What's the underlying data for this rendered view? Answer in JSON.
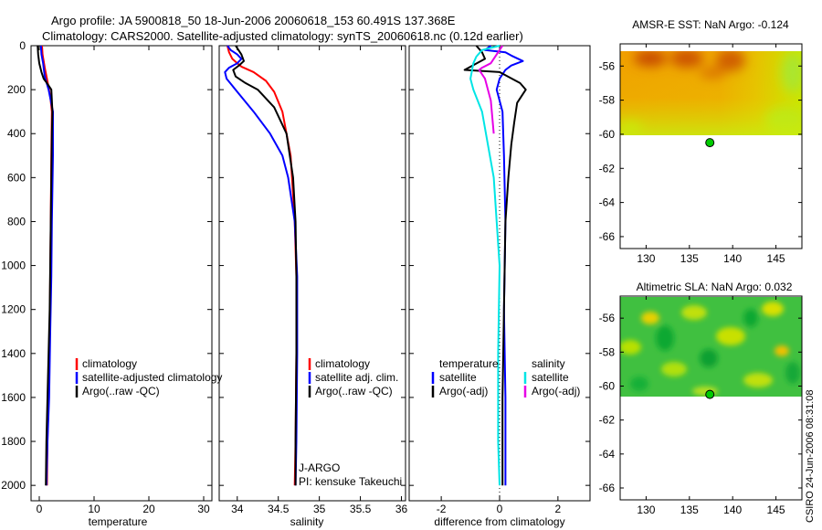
{
  "header": {
    "line1": "Argo profile: JA 5900818_50 18-Jun-2006 20060618_153 60.491S 137.368E",
    "line2": "Climatology: CARS2000. Satellite-adjusted climatology: synTS_20060618.nc (0.12d earlier)"
  },
  "colors": {
    "climatology": "#ff0000",
    "satellite": "#0000ff",
    "argo": "#000000",
    "salinity_satellite": "#00e5e5",
    "salinity_argo": "#e600e6",
    "marker": "#00cc00"
  },
  "chart_data": [
    {
      "type": "line",
      "name": "temperature-profile",
      "xlabel": "temperature",
      "xlim": [
        -1.5,
        31.5
      ],
      "ylim": [
        0,
        2070
      ],
      "xticks": [
        0,
        10,
        20,
        30
      ],
      "yticks": [
        0,
        200,
        400,
        600,
        800,
        1000,
        1200,
        1400,
        1600,
        1800,
        2000
      ],
      "legend": [
        "climatology",
        "satellite-adjusted climatology",
        "Argo(..raw -QC)"
      ],
      "series": [
        {
          "name": "climatology",
          "color_key": "climatology",
          "points": [
            [
              0.5,
              0
            ],
            [
              0.6,
              40
            ],
            [
              1.0,
              100
            ],
            [
              1.4,
              150
            ],
            [
              2.0,
              230
            ],
            [
              2.3,
              300
            ],
            [
              2.2,
              500
            ],
            [
              2.1,
              800
            ],
            [
              2.0,
              1050
            ],
            [
              1.9,
              1300
            ],
            [
              1.7,
              1600
            ],
            [
              1.5,
              1800
            ],
            [
              1.4,
              2000
            ]
          ]
        },
        {
          "name": "satellite-adjusted climatology",
          "color_key": "satellite",
          "points": [
            [
              0.3,
              0
            ],
            [
              0.4,
              40
            ],
            [
              0.7,
              80
            ],
            [
              1.0,
              140
            ],
            [
              1.7,
              200
            ],
            [
              2.5,
              300
            ],
            [
              2.5,
              500
            ],
            [
              2.3,
              800
            ],
            [
              2.2,
              1050
            ],
            [
              2.0,
              1300
            ],
            [
              1.8,
              1600
            ],
            [
              1.5,
              1800
            ],
            [
              1.3,
              2000
            ]
          ]
        },
        {
          "name": "Argo(..raw -QC)",
          "color_key": "argo",
          "points": [
            [
              -0.3,
              0
            ],
            [
              -0.2,
              40
            ],
            [
              0.0,
              80
            ],
            [
              0.4,
              120
            ],
            [
              0.8,
              150
            ],
            [
              1.4,
              170
            ],
            [
              2.2,
              200
            ],
            [
              2.4,
              300
            ],
            [
              2.3,
              400
            ],
            [
              2.2,
              600
            ],
            [
              2.1,
              800
            ],
            [
              2.0,
              1000
            ],
            [
              1.9,
              1200
            ],
            [
              1.7,
              1400
            ],
            [
              1.5,
              1600
            ],
            [
              1.3,
              1800
            ],
            [
              1.2,
              2000
            ]
          ]
        }
      ]
    },
    {
      "type": "line",
      "name": "salinity-profile",
      "xlabel": "salinity",
      "xlim": [
        33.78,
        36.05
      ],
      "ylim": [
        0,
        2070
      ],
      "xticks": [
        34,
        34.5,
        35,
        35.5,
        36
      ],
      "xticklabels": [
        "34",
        "34.5",
        "35",
        "35.5",
        "36"
      ],
      "legend": [
        "climatology",
        "satellite adj. clim.",
        "Argo(..raw -QC)"
      ],
      "annotation": [
        "J-ARGO",
        "PI: kensuke Takeuchi"
      ],
      "series": [
        {
          "name": "climatology",
          "color_key": "climatology",
          "points": [
            [
              33.88,
              0
            ],
            [
              33.9,
              30
            ],
            [
              33.94,
              60
            ],
            [
              34.0,
              80
            ],
            [
              34.05,
              95
            ],
            [
              34.2,
              120
            ],
            [
              34.35,
              160
            ],
            [
              34.45,
              210
            ],
            [
              34.55,
              300
            ],
            [
              34.65,
              500
            ],
            [
              34.7,
              800
            ],
            [
              34.72,
              1050
            ],
            [
              34.72,
              1400
            ],
            [
              34.71,
              1800
            ],
            [
              34.7,
              2000
            ]
          ]
        },
        {
          "name": "satellite adj. clim.",
          "color_key": "satellite",
          "points": [
            [
              33.88,
              0
            ],
            [
              33.92,
              20
            ],
            [
              34.0,
              40
            ],
            [
              34.05,
              60
            ],
            [
              34.0,
              80
            ],
            [
              33.9,
              100
            ],
            [
              33.85,
              120
            ],
            [
              33.87,
              150
            ],
            [
              34.0,
              210
            ],
            [
              34.2,
              300
            ],
            [
              34.4,
              400
            ],
            [
              34.55,
              500
            ],
            [
              34.62,
              600
            ],
            [
              34.7,
              800
            ],
            [
              34.73,
              1050
            ],
            [
              34.73,
              1400
            ],
            [
              34.72,
              1800
            ],
            [
              34.71,
              2000
            ]
          ]
        },
        {
          "name": "Argo(..raw -QC)",
          "color_key": "argo",
          "points": [
            [
              33.98,
              0
            ],
            [
              34.05,
              40
            ],
            [
              34.08,
              70
            ],
            [
              34.02,
              90
            ],
            [
              33.95,
              110
            ],
            [
              33.98,
              140
            ],
            [
              34.1,
              170
            ],
            [
              34.25,
              200
            ],
            [
              34.45,
              280
            ],
            [
              34.6,
              400
            ],
            [
              34.68,
              600
            ],
            [
              34.71,
              800
            ],
            [
              34.72,
              1050
            ],
            [
              34.72,
              1400
            ],
            [
              34.71,
              1800
            ],
            [
              34.71,
              2000
            ]
          ]
        }
      ]
    },
    {
      "type": "line",
      "name": "difference-profile",
      "xlabel": "difference from climatology",
      "xlim": [
        -3.1,
        3.1
      ],
      "ylim": [
        0,
        2070
      ],
      "xticks": [
        -2,
        0,
        2
      ],
      "legend": {
        "temperature": [
          "satellite",
          "Argo(-adj)"
        ],
        "salinity": [
          "satellite",
          "Argo(-adj)"
        ]
      },
      "legend_titles": [
        "temperature",
        "salinity"
      ],
      "series": [
        {
          "name": "temperature satellite",
          "color_key": "satellite",
          "points": [
            [
              -0.3,
              0
            ],
            [
              -0.5,
              20
            ],
            [
              0.2,
              30
            ],
            [
              0.4,
              45
            ],
            [
              0.8,
              70
            ],
            [
              0.4,
              90
            ],
            [
              0.2,
              110
            ],
            [
              0.0,
              150
            ],
            [
              -0.1,
              200
            ],
            [
              0.1,
              300
            ],
            [
              0.15,
              500
            ],
            [
              0.2,
              800
            ],
            [
              0.15,
              1200
            ],
            [
              0.2,
              1600
            ],
            [
              0.2,
              2000
            ]
          ]
        },
        {
          "name": "temperature Argo(-adj)",
          "color_key": "argo",
          "points": [
            [
              -0.8,
              0
            ],
            [
              -0.6,
              30
            ],
            [
              -0.5,
              60
            ],
            [
              -1.2,
              110
            ],
            [
              0.0,
              120
            ],
            [
              0.7,
              170
            ],
            [
              0.9,
              200
            ],
            [
              0.6,
              260
            ],
            [
              0.5,
              350
            ],
            [
              0.4,
              450
            ],
            [
              0.3,
              600
            ],
            [
              0.2,
              800
            ],
            [
              0.15,
              1200
            ],
            [
              0.1,
              1600
            ],
            [
              0.1,
              2000
            ]
          ]
        },
        {
          "name": "salinity satellite",
          "color_key": "salinity_satellite",
          "points": [
            [
              0.0,
              0
            ],
            [
              -0.6,
              20
            ],
            [
              -0.8,
              50
            ],
            [
              -0.9,
              80
            ],
            [
              -1.0,
              150
            ],
            [
              -0.9,
              200
            ],
            [
              -0.6,
              300
            ],
            [
              -0.4,
              450
            ],
            [
              -0.2,
              600
            ],
            [
              -0.1,
              800
            ],
            [
              0.0,
              1000
            ],
            [
              -0.05,
              1400
            ],
            [
              -0.05,
              1800
            ],
            [
              0.0,
              2000
            ]
          ]
        },
        {
          "name": "salinity Argo(-adj)",
          "color_key": "salinity_argo",
          "points": [
            [
              0.1,
              0
            ],
            [
              -0.1,
              40
            ],
            [
              -0.3,
              80
            ],
            [
              -0.6,
              100
            ],
            [
              -0.7,
              110
            ],
            [
              -0.5,
              150
            ],
            [
              -0.3,
              250
            ],
            [
              -0.2,
              400
            ]
          ]
        }
      ]
    },
    {
      "type": "heatmap",
      "name": "amsr-sst-map",
      "title": "AMSR-E SST: NaN Argo: -0.124",
      "xlim": [
        127,
        148
      ],
      "ylim": [
        -66.7,
        -54.7
      ],
      "xticks": [
        130,
        135,
        140,
        145
      ],
      "yticks": [
        -56,
        -58,
        -60,
        -62,
        -64,
        -66
      ],
      "data_lat_range": [
        -60.2,
        -54.7
      ],
      "marker": {
        "lon": 137.368,
        "lat": -60.491
      }
    },
    {
      "type": "heatmap",
      "name": "altimetric-sla-map",
      "title": "Altimetric SLA: NaN Argo: 0.032",
      "xlim": [
        127,
        148
      ],
      "ylim": [
        -66.7,
        -54.7
      ],
      "xticks": [
        130,
        135,
        140,
        145
      ],
      "yticks": [
        -56,
        -58,
        -60,
        -62,
        -64,
        -66
      ],
      "data_lat_range": [
        -60.1,
        -54.7
      ],
      "marker": {
        "lon": 137.368,
        "lat": -60.491
      }
    }
  ],
  "stamp": "CSIRO 24-Jun-2006 08:31:08"
}
